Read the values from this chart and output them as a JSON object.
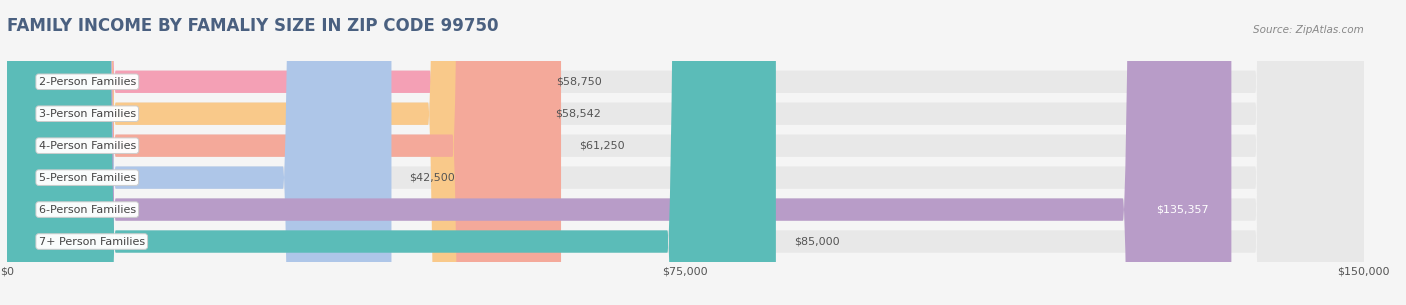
{
  "title": "FAMILY INCOME BY FAMALIY SIZE IN ZIP CODE 99750",
  "source": "Source: ZipAtlas.com",
  "categories": [
    "2-Person Families",
    "3-Person Families",
    "4-Person Families",
    "5-Person Families",
    "6-Person Families",
    "7+ Person Families"
  ],
  "values": [
    58750,
    58542,
    61250,
    42500,
    135357,
    85000
  ],
  "labels": [
    "$58,750",
    "$58,542",
    "$61,250",
    "$42,500",
    "$135,357",
    "$85,000"
  ],
  "bar_colors": [
    "#f4a0b5",
    "#f9c98a",
    "#f4a99a",
    "#aec6e8",
    "#b89cc8",
    "#5bbcb8"
  ],
  "label_colors": [
    "#555555",
    "#555555",
    "#555555",
    "#555555",
    "#ffffff",
    "#555555"
  ],
  "xlim": [
    0,
    150000
  ],
  "xticks": [
    0,
    75000,
    150000
  ],
  "xticklabels": [
    "$0",
    "$75,000",
    "$150,000"
  ],
  "background_color": "#f5f5f5",
  "bar_background_color": "#e8e8e8",
  "title_fontsize": 12,
  "title_color": "#4a6080",
  "source_color": "#888888",
  "bar_height": 0.7
}
